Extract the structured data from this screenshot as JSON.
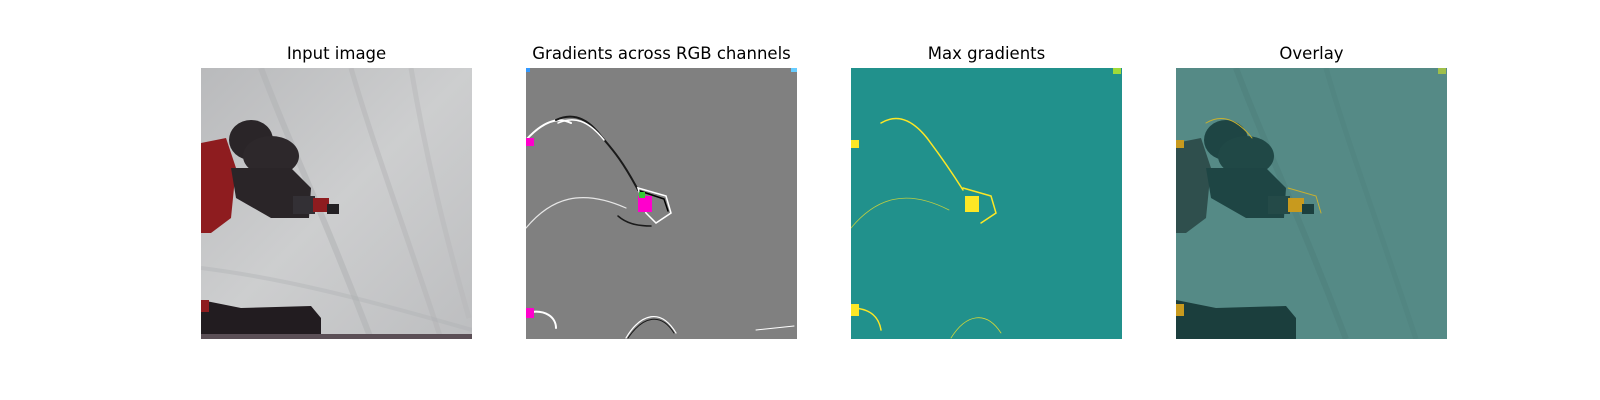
{
  "panels": [
    {
      "title": "Input image"
    },
    {
      "title": "Gradients across RGB channels"
    },
    {
      "title": "Max gradients"
    },
    {
      "title": "Overlay"
    }
  ],
  "colors": {
    "cloth": "#c5c6c8",
    "robot_dark": "#2a2528",
    "robot_red": "#8e1c1f",
    "gradient_gray": "#808080",
    "gradient_magenta": "#ff00cc",
    "gradient_green": "#33cc33",
    "max_teal": "#21918c",
    "max_yellow": "#fde725",
    "overlay_teal": "#558a86",
    "overlay_dark": "#1e4544",
    "overlay_gold": "#c89a1e"
  }
}
